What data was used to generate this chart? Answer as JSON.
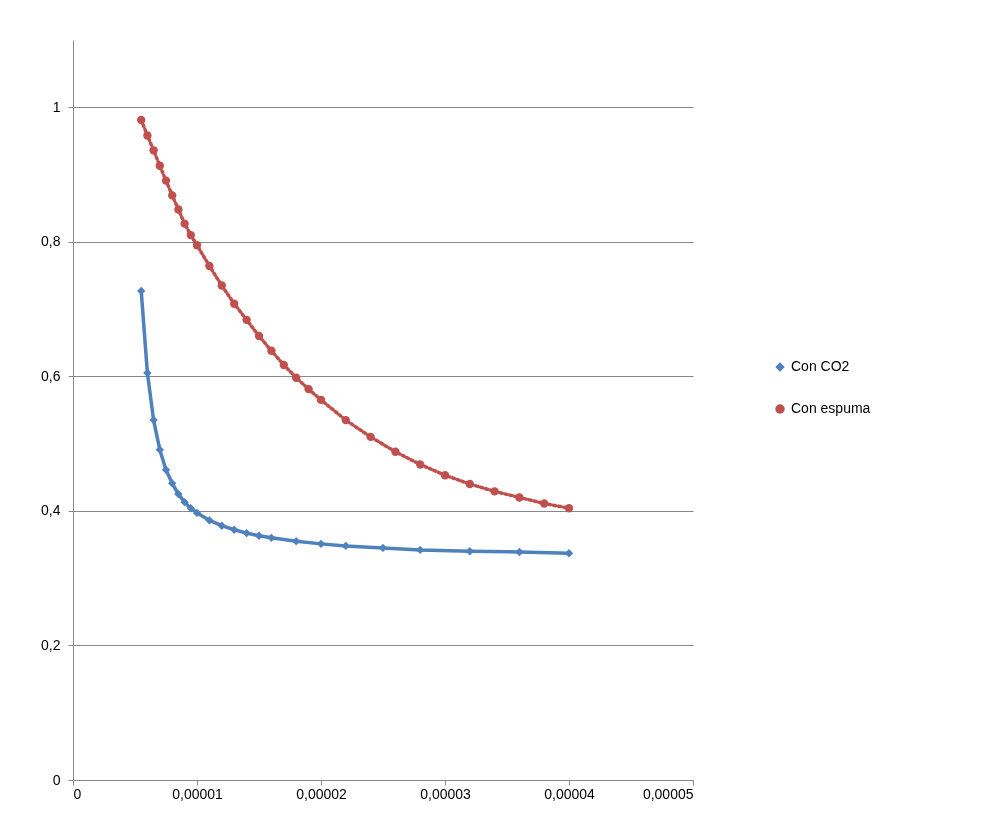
{
  "chart_data": {
    "type": "line",
    "xlim": [
      0,
      5e-05
    ],
    "ylim": [
      0,
      1.1
    ],
    "xticks": [
      0,
      {
        "value": 1e-05,
        "label": "0,00001"
      },
      {
        "value": 2e-05,
        "label": "0,00002"
      },
      {
        "value": 3e-05,
        "label": "0,00003"
      },
      {
        "value": 4e-05,
        "label": "0,00004"
      },
      {
        "value": 5e-05,
        "label": "0,00005"
      }
    ],
    "yticks": [
      0,
      {
        "value": 0.2,
        "label": "0,2"
      },
      {
        "value": 0.4,
        "label": "0,4"
      },
      {
        "value": 0.6,
        "label": "0,6"
      },
      {
        "value": 0.8,
        "label": "0,8"
      },
      1
    ],
    "grid": "y",
    "legend": "right",
    "series": [
      {
        "name": "Con CO2",
        "color": "#4f81bd",
        "marker": "diamond",
        "line_style": "solid",
        "x": [
          5.5e-06,
          6e-06,
          6.5e-06,
          7e-06,
          7.5e-06,
          8e-06,
          8.5e-06,
          9e-06,
          9.5e-06,
          1e-05,
          1.1e-05,
          1.2e-05,
          1.3e-05,
          1.4e-05,
          1.5e-05,
          1.6e-05,
          1.8e-05,
          2e-05,
          2.2e-05,
          2.5e-05,
          2.8e-05,
          3.2e-05,
          3.6e-05,
          4e-05
        ],
        "values": [
          0.727,
          0.605,
          0.535,
          0.491,
          0.461,
          0.441,
          0.425,
          0.413,
          0.404,
          0.397,
          0.386,
          0.378,
          0.372,
          0.367,
          0.363,
          0.36,
          0.355,
          0.351,
          0.348,
          0.345,
          0.342,
          0.34,
          0.339,
          0.337
        ]
      },
      {
        "name": "Con espuma",
        "color": "#c0504d",
        "marker": "circle",
        "line_style": "dotted",
        "x": [
          5.5e-06,
          6e-06,
          6.5e-06,
          7e-06,
          7.5e-06,
          8e-06,
          8.5e-06,
          9e-06,
          9.5e-06,
          1e-05,
          1.1e-05,
          1.2e-05,
          1.3e-05,
          1.4e-05,
          1.5e-05,
          1.6e-05,
          1.7e-05,
          1.8e-05,
          1.9e-05,
          2e-05,
          2.2e-05,
          2.4e-05,
          2.6e-05,
          2.8e-05,
          3e-05,
          3.2e-05,
          3.4e-05,
          3.6e-05,
          3.8e-05,
          4e-05
        ],
        "values": [
          0.981,
          0.958,
          0.936,
          0.913,
          0.891,
          0.869,
          0.848,
          0.827,
          0.81,
          0.795,
          0.764,
          0.735,
          0.708,
          0.684,
          0.66,
          0.638,
          0.617,
          0.598,
          0.581,
          0.565,
          0.535,
          0.51,
          0.488,
          0.469,
          0.453,
          0.44,
          0.429,
          0.42,
          0.411,
          0.404
        ]
      }
    ]
  }
}
